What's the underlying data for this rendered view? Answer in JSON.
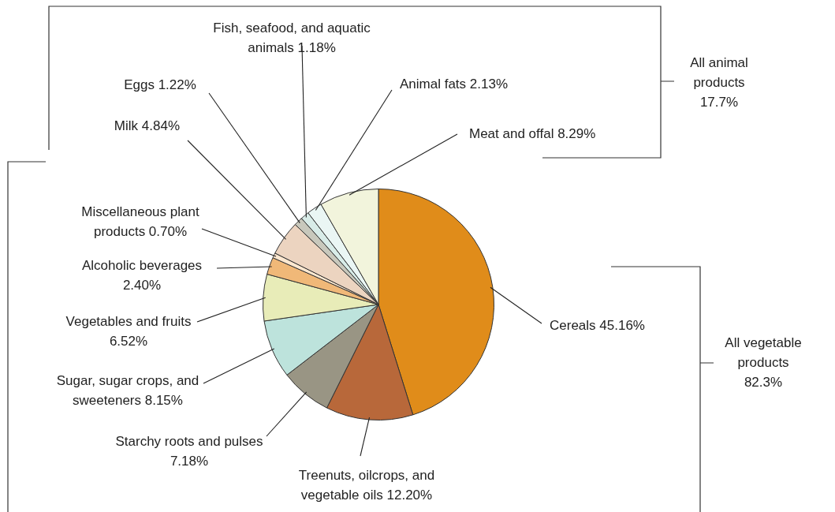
{
  "chart_data": {
    "type": "pie",
    "categories": [
      "Cereals",
      "Treenuts, oilcrops, and vegetable oils",
      "Starchy roots and pulses",
      "Sugar, sugar crops, and sweeteners",
      "Vegetables and fruits",
      "Alcoholic beverages",
      "Miscellaneous plant products",
      "Milk",
      "Eggs",
      "Fish, seafood, and aquatic animals",
      "Animal fats",
      "Meat and offal"
    ],
    "values": [
      45.16,
      12.2,
      7.18,
      8.15,
      6.52,
      2.4,
      0.7,
      4.84,
      1.22,
      1.18,
      2.13,
      8.29
    ],
    "value_labels": [
      "45.16%",
      "12.20%",
      "7.18%",
      "8.15%",
      "6.52%",
      "2.40%",
      "0.70%",
      "4.84%",
      "1.22%",
      "1.18%",
      "2.13%",
      "8.29%"
    ],
    "colors": [
      "#e08c1a",
      "#b8683a",
      "#999584",
      "#bde3dc",
      "#e8ecb8",
      "#f0b878",
      "#fde8d0",
      "#ecd4c0",
      "#c8c8bc",
      "#d8ece8",
      "#eaf6f4",
      "#f2f4dc"
    ],
    "annotations": [
      "All animal products 17.7%",
      "All vegetable products 82.3%"
    ],
    "legend": false
  }
}
